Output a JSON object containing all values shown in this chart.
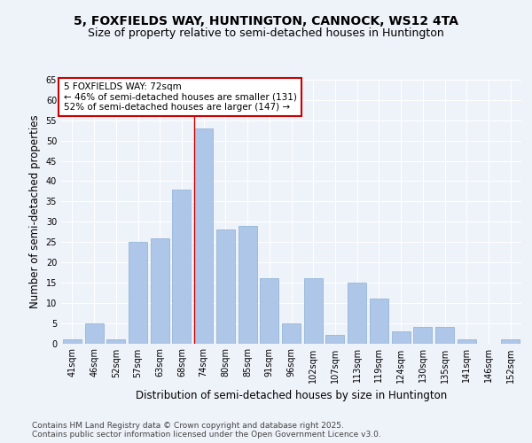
{
  "title": "5, FOXFIELDS WAY, HUNTINGTON, CANNOCK, WS12 4TA",
  "subtitle": "Size of property relative to semi-detached houses in Huntington",
  "xlabel": "Distribution of semi-detached houses by size in Huntington",
  "ylabel": "Number of semi-detached properties",
  "categories": [
    "41sqm",
    "46sqm",
    "52sqm",
    "57sqm",
    "63sqm",
    "68sqm",
    "74sqm",
    "80sqm",
    "85sqm",
    "91sqm",
    "96sqm",
    "102sqm",
    "107sqm",
    "113sqm",
    "119sqm",
    "124sqm",
    "130sqm",
    "135sqm",
    "141sqm",
    "146sqm",
    "152sqm"
  ],
  "values": [
    1,
    5,
    1,
    25,
    26,
    38,
    53,
    28,
    29,
    16,
    5,
    16,
    2,
    15,
    11,
    3,
    4,
    4,
    1,
    0,
    1
  ],
  "bar_color": "#aec6e8",
  "bar_edge_color": "#89afd4",
  "highlight_index": 6,
  "highlight_line_color": "#cc0000",
  "annotation_text": "5 FOXFIELDS WAY: 72sqm\n← 46% of semi-detached houses are smaller (131)\n52% of semi-detached houses are larger (147) →",
  "annotation_box_color": "#ffffff",
  "annotation_box_edge": "#cc0000",
  "ylim": [
    0,
    65
  ],
  "yticks": [
    0,
    5,
    10,
    15,
    20,
    25,
    30,
    35,
    40,
    45,
    50,
    55,
    60,
    65
  ],
  "footer_text": "Contains HM Land Registry data © Crown copyright and database right 2025.\nContains public sector information licensed under the Open Government Licence v3.0.",
  "background_color": "#eef2f9",
  "grid_color": "#ffffff",
  "title_fontsize": 10,
  "subtitle_fontsize": 9,
  "axis_label_fontsize": 8.5,
  "tick_fontsize": 7,
  "footer_fontsize": 6.5,
  "annotation_fontsize": 7.5
}
